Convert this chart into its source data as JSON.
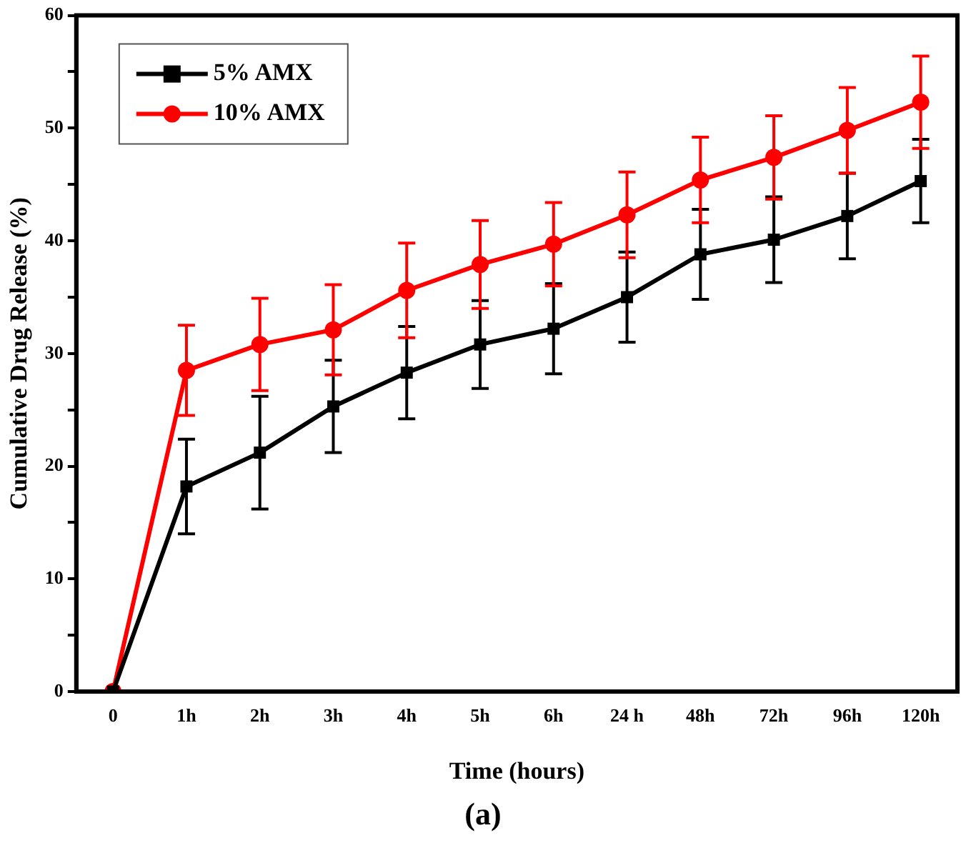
{
  "chart_data": {
    "type": "line",
    "xlabel": "Time (hours)",
    "ylabel": "Cumulative Drug Release (%)",
    "annotations": [
      "(a)"
    ],
    "categories": [
      "0",
      "1h",
      "2h",
      "3h",
      "4h",
      "5h",
      "6h",
      "24 h",
      "48h",
      "72h",
      "96h",
      "120h"
    ],
    "series": [
      {
        "name": "5% AMX",
        "color": "#000000",
        "marker": "square",
        "values": [
          0,
          18.2,
          21.2,
          25.3,
          28.3,
          30.8,
          32.2,
          35,
          38.8,
          40.1,
          42.2,
          45.3
        ],
        "errors": [
          null,
          4.2,
          5,
          4.1,
          4.1,
          3.9,
          4,
          4,
          4,
          3.8,
          3.8,
          3.7
        ]
      },
      {
        "name": "10% AMX",
        "color": "#ff0000",
        "marker": "circle",
        "values": [
          0,
          28.5,
          30.8,
          32.1,
          35.6,
          37.9,
          39.7,
          42.3,
          45.4,
          47.4,
          49.8,
          52.3
        ],
        "errors": [
          null,
          4,
          4.1,
          4,
          4.2,
          3.9,
          3.7,
          3.8,
          3.8,
          3.7,
          3.8,
          4.1
        ]
      }
    ],
    "ylim": [
      0,
      60
    ],
    "yticks": [
      0,
      {
        "value": 5,
        "label": null
      },
      10,
      {
        "value": 15,
        "label": null
      },
      20,
      {
        "value": 25,
        "label": null
      },
      30,
      {
        "value": 35,
        "label": null
      },
      40,
      {
        "value": 45,
        "label": null
      },
      50,
      {
        "value": 55,
        "label": null
      },
      60
    ],
    "grid": false,
    "legend": "top left",
    "line_style": "solid"
  }
}
